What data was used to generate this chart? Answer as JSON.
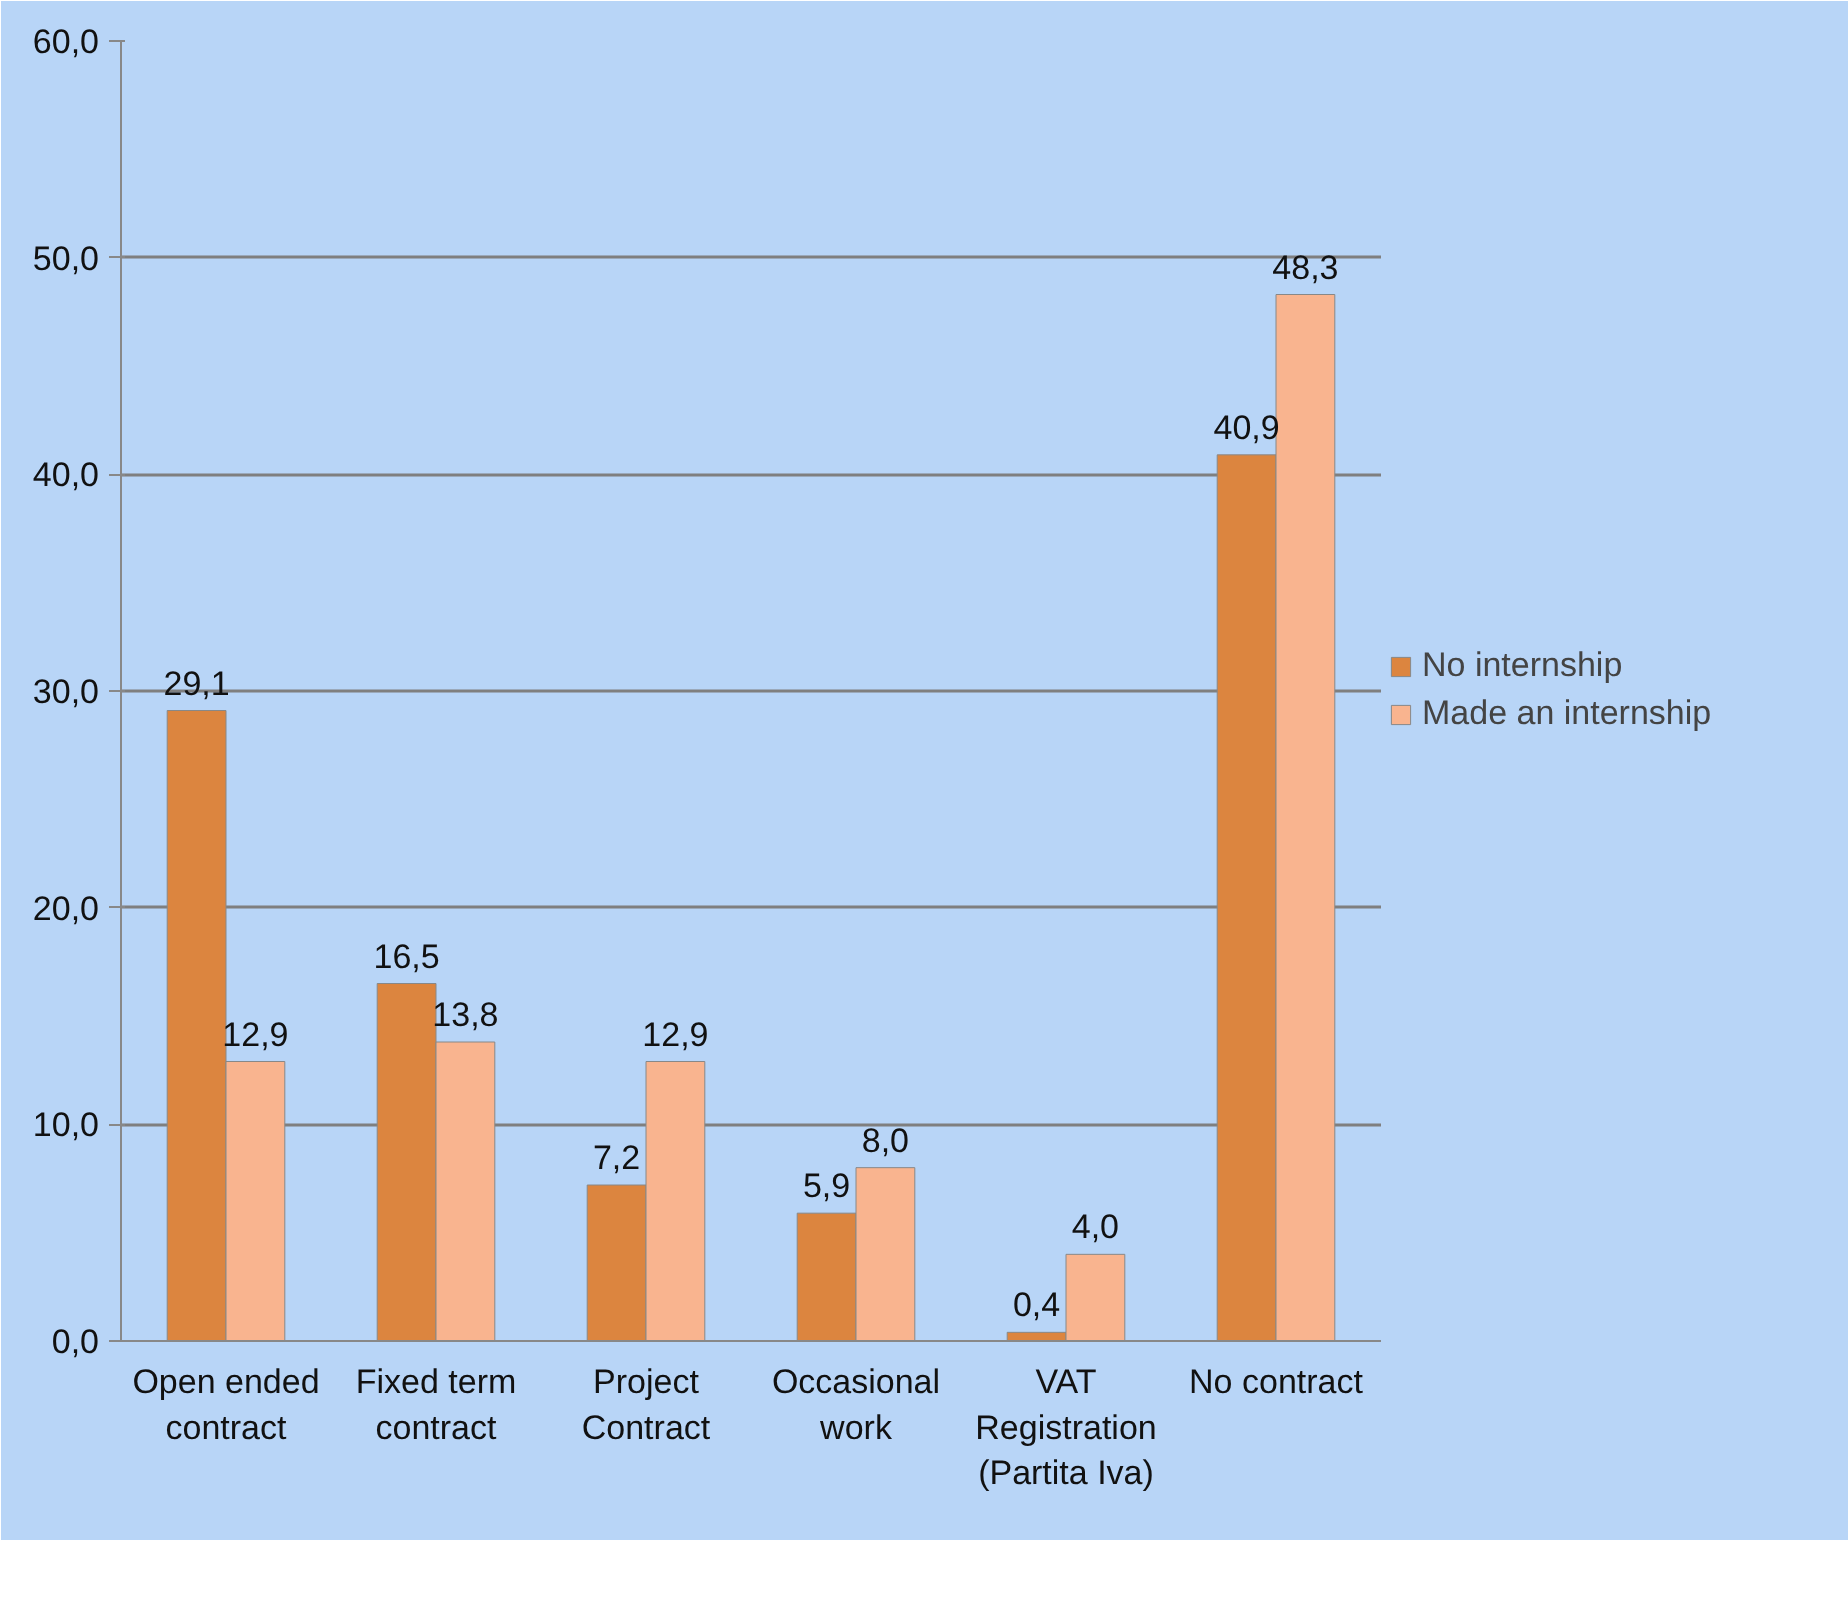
{
  "chart_data": {
    "type": "bar",
    "categories": [
      "Open ended\ncontract",
      "Fixed term\ncontract",
      "Project\nContract",
      "Occasional\nwork",
      "VAT\nRegistration\n(Partita Iva)",
      "No contract"
    ],
    "series": [
      {
        "name": "No internship",
        "color": "#dc853f",
        "values": [
          29.1,
          16.5,
          7.2,
          5.9,
          0.4,
          40.9
        ],
        "value_labels": [
          "29,1",
          "16,5",
          "7,2",
          "5,9",
          "0,4",
          "40,9"
        ]
      },
      {
        "name": "Made an internship",
        "color": "#f9b48f",
        "values": [
          12.9,
          13.8,
          12.9,
          8.0,
          4.0,
          48.3
        ],
        "value_labels": [
          "12,9",
          "13,8",
          "12,9",
          "8,0",
          "4,0",
          "48,3"
        ]
      }
    ],
    "ylim": [
      0,
      60
    ],
    "yticks": [
      {
        "value": 0,
        "label": "0,0"
      },
      {
        "value": 10,
        "label": "10,0"
      },
      {
        "value": 20,
        "label": "20,0"
      },
      {
        "value": 30,
        "label": "30,0"
      },
      {
        "value": 40,
        "label": "40,0"
      },
      {
        "value": 50,
        "label": "50,0"
      },
      {
        "value": 60,
        "label": "60,0"
      }
    ],
    "grid": "y",
    "legend": "right"
  }
}
